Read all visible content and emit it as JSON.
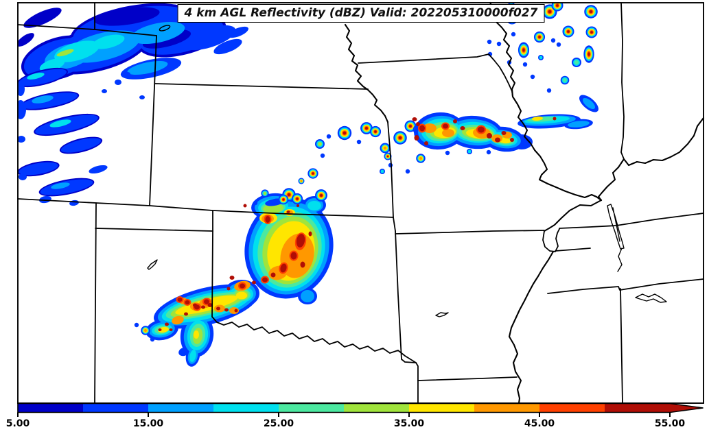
{
  "title": {
    "text": "4 km AGL Reflectivity (dBZ) Valid: 202205310000f027"
  },
  "colorbar": {
    "quantity": "Reflectivity",
    "units": "dBZ",
    "min": 5,
    "max": 55,
    "segments": [
      {
        "from": 5,
        "to": 10,
        "color": "#0000C8"
      },
      {
        "from": 10,
        "to": 15,
        "color": "#0038FF"
      },
      {
        "from": 15,
        "to": 20,
        "color": "#00A0FF"
      },
      {
        "from": 20,
        "to": 25,
        "color": "#00E0EE"
      },
      {
        "from": 25,
        "to": 30,
        "color": "#4CE8A0"
      },
      {
        "from": 30,
        "to": 35,
        "color": "#A0E43C"
      },
      {
        "from": 35,
        "to": 40,
        "color": "#FFE600"
      },
      {
        "from": 40,
        "to": 45,
        "color": "#FF9800"
      },
      {
        "from": 45,
        "to": 50,
        "color": "#FF4000"
      },
      {
        "from": 50,
        "to": 55,
        "color": "#B00E06"
      }
    ],
    "over_arrow_color": "#B00E06",
    "tick_values": [
      5,
      15,
      25,
      35,
      45,
      55
    ],
    "tick_labels": [
      "5.00",
      "15.00",
      "25.00",
      "35.00",
      "45.00",
      "55.00"
    ]
  },
  "map": {
    "region": "Central United States (state borders and rivers, no basemap labels)",
    "echo_regions": [
      {
        "area": "eastern Colorado / Nebraska panhandle",
        "character": "light stratiform bands",
        "max_dbz": 30
      },
      {
        "area": "SW Kansas / Oklahoma panhandle / NW Oklahoma",
        "character": "large convective complex with many 55+ dBZ cores",
        "max_dbz": 55
      },
      {
        "area": "northern Missouri extending into west-central Illinois",
        "character": "broken line of strong cells",
        "max_dbz": 55
      },
      {
        "area": "NE Iowa / SW Wisconsin / NW Illinois",
        "character": "scattered intense cells",
        "max_dbz": 55
      }
    ]
  }
}
